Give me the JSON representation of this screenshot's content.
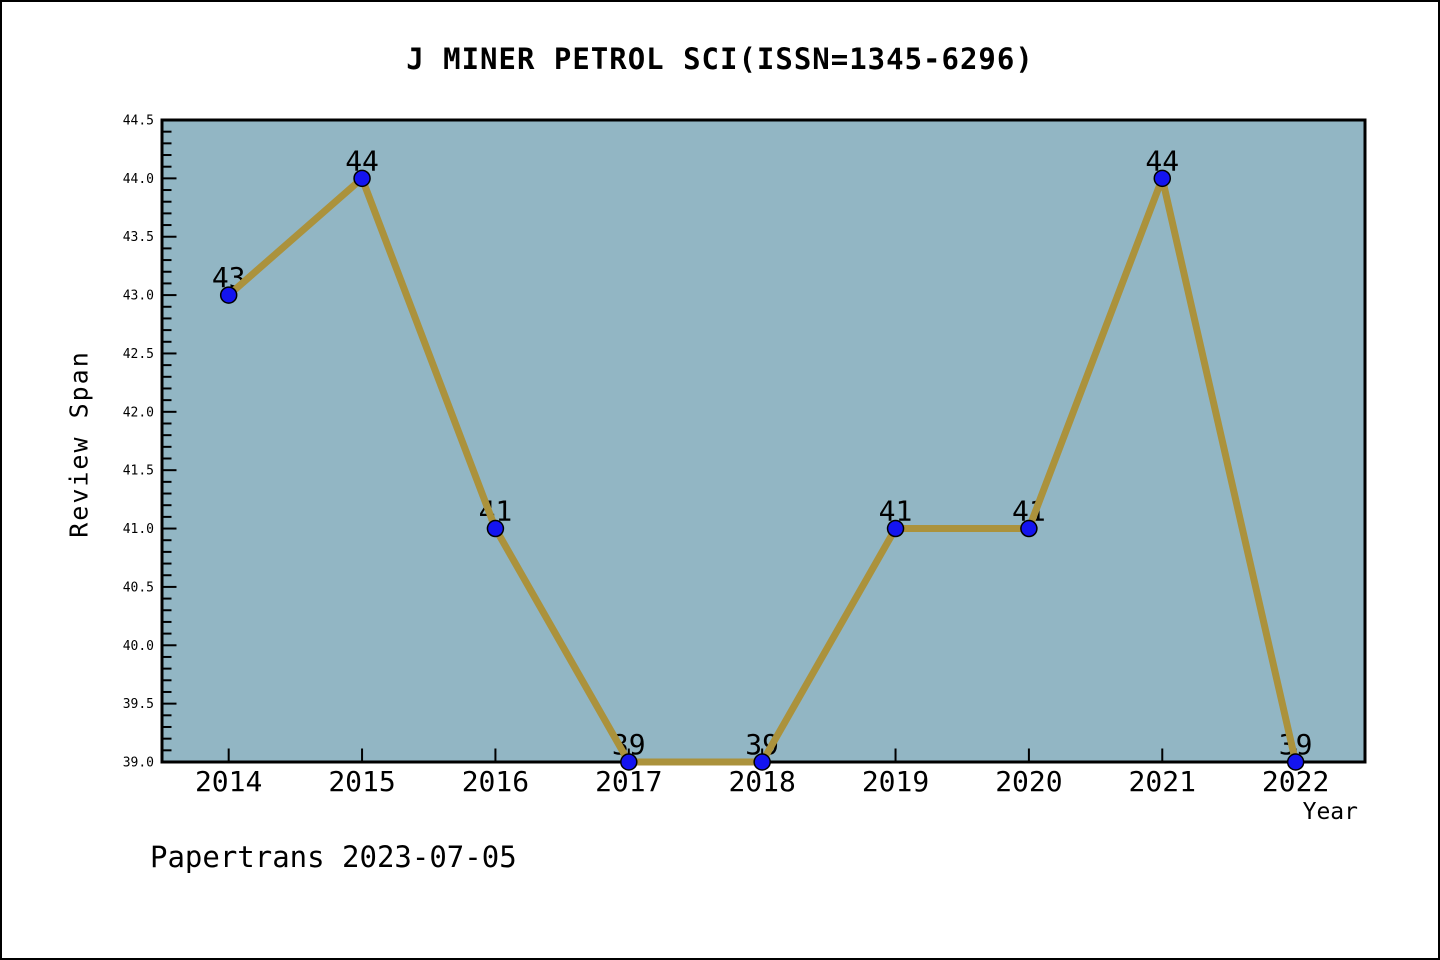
{
  "footer": "Papertrans 2023-07-05",
  "chart_data": {
    "type": "line",
    "title": "J MINER PETROL SCI(ISSN=1345-6296)",
    "xlabel": "Year",
    "ylabel": "Review Span",
    "x": [
      2014,
      2015,
      2016,
      2017,
      2018,
      2019,
      2020,
      2021,
      2022
    ],
    "series": [
      {
        "name": "Review Span",
        "values": [
          43,
          44,
          41,
          39,
          39,
          41,
          41,
          44,
          39
        ]
      }
    ],
    "point_labels": [
      "43",
      "44",
      "41",
      "39",
      "39",
      "41",
      "41",
      "44",
      "39"
    ],
    "xlim": [
      2013.5,
      2022.52
    ],
    "ylim": [
      39.0,
      44.5
    ],
    "ytick_major_step": 0.5,
    "ytick_minor_step": 0.1,
    "ytick_labels": [
      "39.0",
      "39.5",
      "40.0",
      "40.5",
      "41.0",
      "41.5",
      "42.0",
      "42.5",
      "43.0",
      "43.5",
      "44.0",
      "44.5"
    ],
    "grid": false,
    "legend": "none",
    "colors": {
      "plot_bg": "#92B6C4",
      "line": "#AB923C",
      "marker": "#1414F0",
      "marker_edge": "#000000",
      "axis": "#000000",
      "text": "#000000",
      "page_bg": "#FFFFFF"
    }
  }
}
